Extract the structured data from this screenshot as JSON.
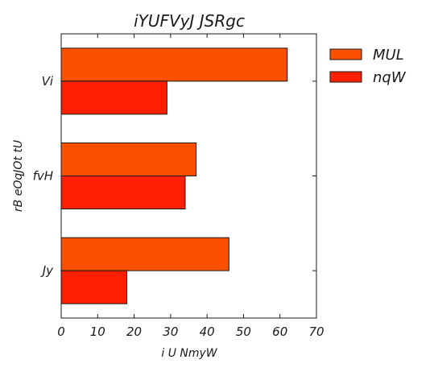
{
  "chart_data": {
    "type": "bar",
    "orientation": "horizontal",
    "title": "iYUFVyJ JSRgc",
    "xlabel": "i U NmyW",
    "ylabel": "rB eOqJOt tU",
    "categories": [
      "Vi",
      "fvH",
      "Jy"
    ],
    "series": [
      {
        "name": "MUL",
        "color": "#fc4f00",
        "values": [
          62,
          37,
          46
        ]
      },
      {
        "name": "nqW",
        "color": "#fe1e00",
        "values": [
          29,
          34,
          18
        ]
      }
    ],
    "xlim": [
      0,
      70
    ],
    "xticks": [
      0,
      10,
      20,
      30,
      40,
      50,
      60,
      70
    ],
    "grid": false,
    "legend_position": "outside-right-top"
  }
}
